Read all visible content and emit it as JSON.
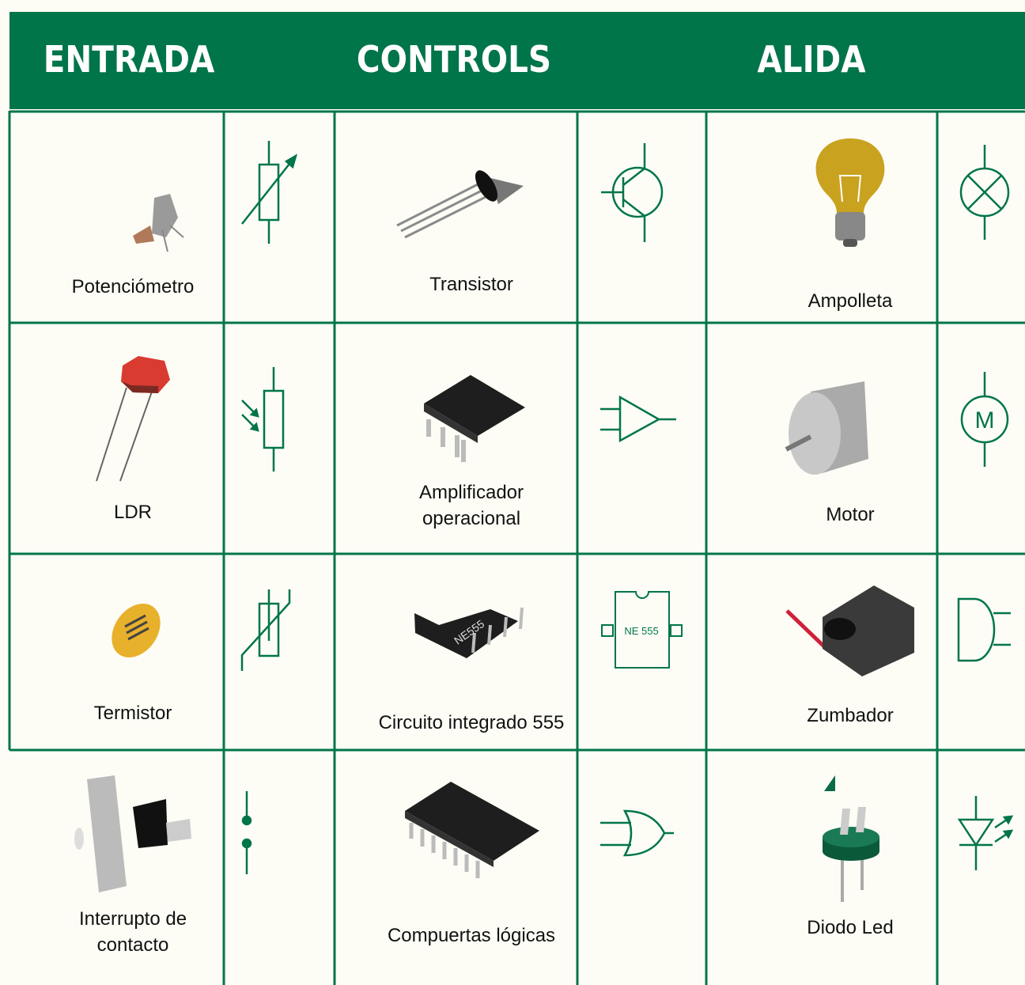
{
  "header": [
    "ENTRADA",
    "CONTROLS",
    "ALIDA"
  ],
  "rows": [
    [
      "Potenciómetro",
      "Transistor",
      "Ampolleta"
    ],
    [
      "LDR",
      "Amplificador operacional",
      "Motor"
    ],
    [
      "Termistor",
      "Circuito integrado 555",
      "Zumbador"
    ],
    [
      "Interrupto de contacto",
      "Compuertas lógicas",
      "Diodo Led"
    ]
  ],
  "symbol_texts": {
    "ic_555": "NE 555",
    "motor": "M"
  },
  "chip_marking": "NE555"
}
